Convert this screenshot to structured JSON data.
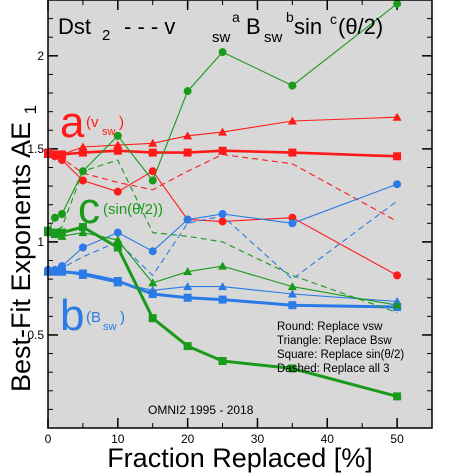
{
  "chart_data": {
    "type": "line",
    "title": {
      "t1": "Dst",
      "t1_sub": "2",
      "t2": "- - - v",
      "t2_sub": "sw",
      "t2_sup": "a",
      "t3": "B",
      "t3_sub": "sw",
      "t3_sup": "b",
      "t4": "sin",
      "t4_sup": "c",
      "t4_rest": "(θ/2)"
    },
    "xlabel": "Fraction Replaced [%]",
    "ylabel": "Best-Fit Exponents AE",
    "ylabel_sub": "1",
    "xlim": [
      0,
      55
    ],
    "ylim": [
      0,
      2.3
    ],
    "xticks": [
      0,
      10,
      20,
      30,
      40,
      50
    ],
    "yticks": [
      0.5,
      1,
      1.5,
      2
    ],
    "ytick_labels": [
      "0.5",
      "1",
      "1.5",
      "2"
    ],
    "minor_x": 5,
    "minor_y": 0.1,
    "grid": false,
    "background": "#d8d8d8",
    "colors": {
      "a": "#ff1a1a",
      "b": "#2a7be6",
      "c": "#1a9a1a"
    },
    "exponent_labels": {
      "a": {
        "big": "a",
        "small": "(v",
        "sub": "sw",
        "close": ")"
      },
      "b": {
        "big": "b",
        "small": "(B",
        "sub": "sw",
        "close": ")"
      },
      "c": {
        "big": "c",
        "small": "(sin(θ/2))"
      }
    },
    "legend_notes": [
      "Round: Replace vsw",
      "Triangle: Replace Bsw",
      "Square: Replace sin(θ/2)",
      "Dashed: Replace all 3"
    ],
    "footnote": "OMNI2 1995 - 2018",
    "x": [
      0,
      1,
      2,
      5,
      10,
      15,
      20,
      25,
      35,
      50
    ],
    "series": [
      {
        "group": "a",
        "marker": "round",
        "style": "solid",
        "values": [
          1.48,
          1.46,
          1.44,
          1.33,
          1.27,
          1.38,
          1.12,
          1.11,
          1.13,
          0.82
        ]
      },
      {
        "group": "a",
        "marker": "triangle",
        "style": "solid",
        "values": [
          1.47,
          1.47,
          1.47,
          1.51,
          1.52,
          1.53,
          1.57,
          1.59,
          1.65,
          1.67
        ]
      },
      {
        "group": "a",
        "marker": "square",
        "style": "solid",
        "values": [
          1.48,
          1.47,
          1.47,
          1.48,
          1.49,
          1.48,
          1.48,
          1.49,
          1.48,
          1.46
        ]
      },
      {
        "group": "a",
        "marker": "square",
        "style": "dashed",
        "values": [
          1.47,
          1.46,
          1.45,
          1.37,
          1.32,
          1.28,
          1.38,
          1.47,
          1.42,
          1.11
        ]
      },
      {
        "group": "b",
        "marker": "round",
        "style": "solid",
        "values": [
          0.85,
          0.85,
          0.87,
          0.97,
          1.05,
          0.95,
          1.12,
          1.15,
          1.1,
          1.31
        ]
      },
      {
        "group": "b",
        "marker": "triangle",
        "style": "solid",
        "values": [
          0.84,
          0.84,
          0.84,
          0.82,
          0.78,
          0.74,
          0.76,
          0.76,
          0.72,
          0.68
        ]
      },
      {
        "group": "b",
        "marker": "square",
        "style": "solid",
        "values": [
          0.84,
          0.84,
          0.84,
          0.83,
          0.79,
          0.72,
          0.7,
          0.69,
          0.66,
          0.65
        ]
      },
      {
        "group": "b",
        "marker": "square",
        "style": "dashed",
        "values": [
          0.84,
          0.84,
          0.86,
          0.92,
          1.0,
          0.82,
          1.1,
          1.14,
          0.8,
          1.22
        ]
      },
      {
        "group": "c",
        "marker": "round",
        "style": "solid",
        "values": [
          1.06,
          1.13,
          1.15,
          1.38,
          1.57,
          1.33,
          1.81,
          2.02,
          1.84,
          2.28
        ]
      },
      {
        "group": "c",
        "marker": "triangle",
        "style": "solid",
        "values": [
          1.05,
          1.04,
          1.03,
          1.05,
          1.01,
          0.78,
          0.84,
          0.87,
          0.76,
          0.66
        ]
      },
      {
        "group": "c",
        "marker": "square",
        "style": "solid",
        "values": [
          1.06,
          1.05,
          1.05,
          1.08,
          0.97,
          0.59,
          0.44,
          0.36,
          0.32,
          0.17
        ]
      },
      {
        "group": "c",
        "marker": "square",
        "style": "dashed",
        "values": [
          1.06,
          1.06,
          1.08,
          1.38,
          1.44,
          1.05,
          1.03,
          1.0,
          0.82,
          0.62
        ]
      }
    ]
  }
}
